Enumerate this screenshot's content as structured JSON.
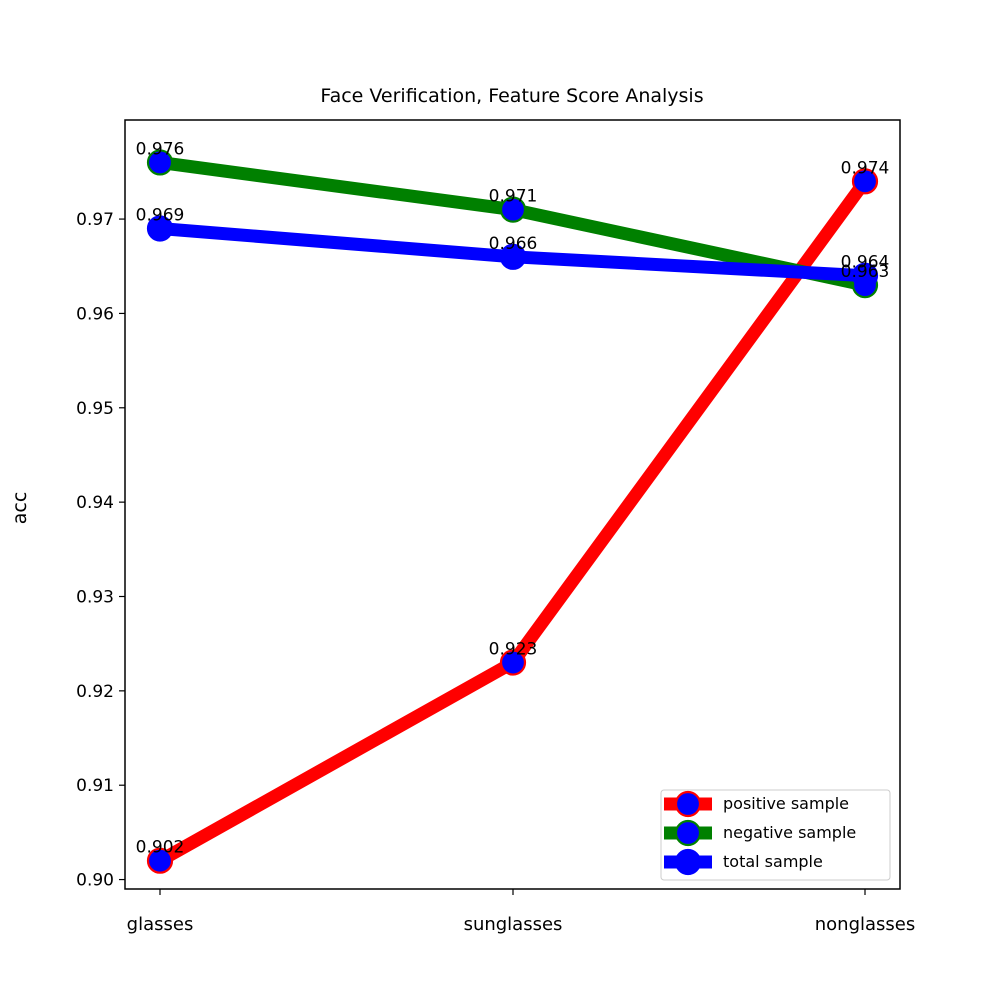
{
  "chart_data": {
    "type": "line",
    "title": "Face Verification, Feature Score Analysis",
    "xlabel": "",
    "ylabel": "acc",
    "categories": [
      "glasses",
      "sunglasses",
      "nonglasses"
    ],
    "ylim": [
      0.899,
      0.9805
    ],
    "yticks": [
      0.9,
      0.91,
      0.92,
      0.93,
      0.94,
      0.95,
      0.96,
      0.97
    ],
    "ytick_labels": [
      "0.90",
      "0.91",
      "0.92",
      "0.93",
      "0.94",
      "0.95",
      "0.96",
      "0.97"
    ],
    "grid": false,
    "legend_position": "lower right",
    "series": [
      {
        "name": "positive sample",
        "values": [
          0.902,
          0.923,
          0.974
        ],
        "labels": [
          "0.902",
          "0.923",
          "0.974"
        ],
        "line_color": "#ff0000",
        "marker_color": "#0000ff",
        "marker_edge": "#ff0000"
      },
      {
        "name": "negative sample",
        "values": [
          0.976,
          0.971,
          0.963
        ],
        "labels": [
          "0.976",
          "0.971",
          "0.963"
        ],
        "line_color": "#008000",
        "marker_color": "#0000ff",
        "marker_edge": "#008000"
      },
      {
        "name": "total sample",
        "values": [
          0.969,
          0.966,
          0.964
        ],
        "labels": [
          "0.969",
          "0.966",
          "0.964"
        ],
        "line_color": "#0000ff",
        "marker_color": "#0000ff",
        "marker_edge": "#0000ff"
      }
    ]
  }
}
